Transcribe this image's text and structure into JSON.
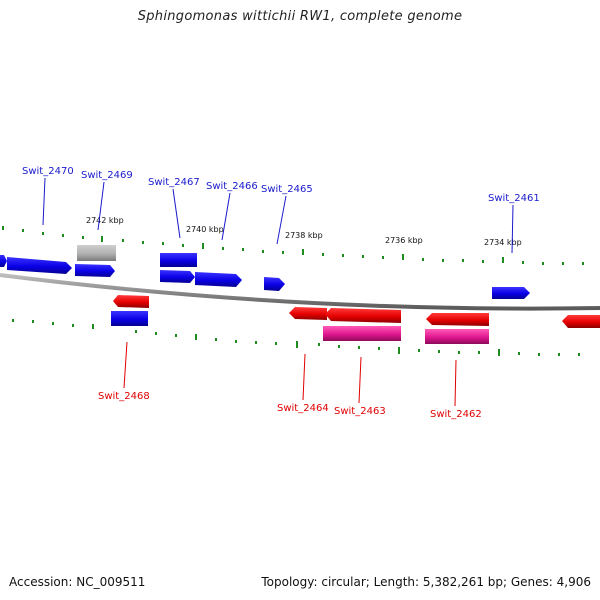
{
  "title": "Sphingomonas wittichii RW1, complete genome",
  "footer": {
    "accession": "Accession: NC_009511",
    "summary": "Topology: circular; Length: 5,382,261 bp; Genes: 4,906"
  },
  "colors": {
    "forward_gene": "#0a00e6",
    "reverse_gene": "#e60000",
    "pseudo_gene": "#b0b0b0",
    "rna_gene": "#e0178f",
    "tick": "#1e8c1e",
    "backbone": "#8a8a8a",
    "forward_label": "#1a1acc",
    "reverse_label": "#e00000"
  },
  "kbp_labels": [
    "2742 kbp",
    "2740 kbp",
    "2738 kbp",
    "2736 kbp",
    "2734 kbp"
  ],
  "gene_labels": {
    "forward": [
      "Swit_2470",
      "Swit_2469",
      "Swit_2467",
      "Swit_2466",
      "Swit_2465",
      "Swit_2461"
    ],
    "reverse": [
      "Swit_2468",
      "Swit_2464",
      "Swit_2463",
      "Swit_2462"
    ]
  }
}
